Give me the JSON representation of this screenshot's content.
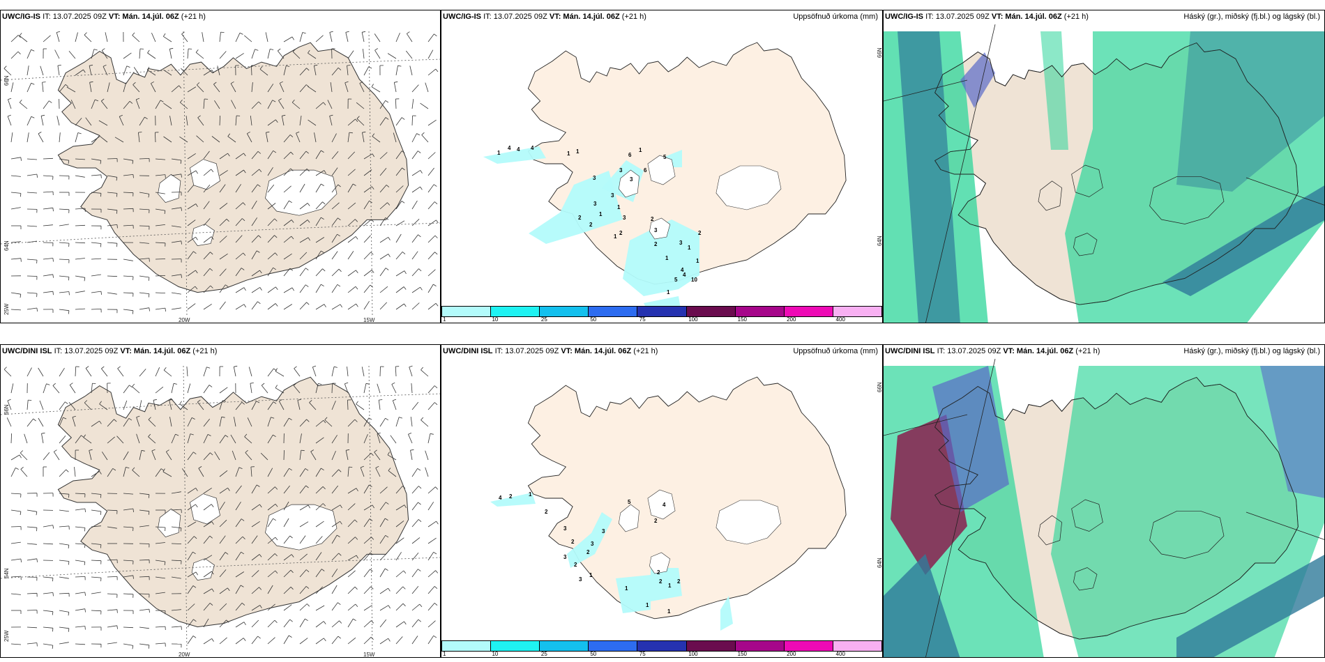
{
  "panels": [
    {
      "id": "ig-wind",
      "model": "UWC/IG-IS",
      "it": "IT: 13.07.2025 09Z",
      "vt": "VT: Mán. 14.júl. 06Z",
      "lead": "(+21 h)",
      "title": "",
      "lat_labels": [
        "66N",
        "64N",
        "25W"
      ],
      "lon_labels": [
        "20W",
        "15W"
      ]
    },
    {
      "id": "ig-precip",
      "model": "UWC/IG-IS",
      "it": "IT: 13.07.2025 09Z",
      "vt": "VT: Mán. 14.júl. 06Z",
      "lead": "(+21 h)",
      "title": "Uppsöfnuð úrkoma (mm)",
      "lat_labels": [
        "66N",
        "64N"
      ],
      "lon_labels": [],
      "precip_values": [
        "1",
        "4",
        "4",
        "4",
        "1",
        "1",
        "3",
        "3",
        "3",
        "6",
        "1",
        "6",
        "3",
        "1",
        "1",
        "3",
        "3",
        "5",
        "2",
        "2",
        "2",
        "2",
        "3",
        "1",
        "2",
        "3",
        "1",
        "2",
        "4",
        "5",
        "4",
        "10",
        "1",
        "1",
        "1",
        "1"
      ]
    },
    {
      "id": "ig-cloud",
      "model": "UWC/IG-IS",
      "it": "IT: 13.07.2025 09Z",
      "vt": "VT: Mán. 14.júl. 06Z",
      "lead": "(+21 h)",
      "title": "Háský (gr.), miðský (fj.bl.) og lágský (bl.)",
      "lat_labels": [],
      "lon_labels": []
    },
    {
      "id": "dini-wind",
      "model": "UWC/DINI ISL",
      "it": "IT: 13.07.2025 09Z",
      "vt": "VT: Mán. 14.júl. 06Z",
      "lead": "(+21 h)",
      "title": "",
      "lat_labels": [
        "66N",
        "64N",
        "25W"
      ],
      "lon_labels": [
        "20W",
        "15W"
      ]
    },
    {
      "id": "dini-precip",
      "model": "UWC/DINI ISL",
      "it": "IT: 13.07.2025 09Z",
      "vt": "VT: Mán. 14.júl. 06Z",
      "lead": "(+21 h)",
      "title": "Uppsöfnuð úrkoma (mm)",
      "lat_labels": [
        "66N",
        "64N"
      ],
      "lon_labels": [],
      "precip_values": [
        "4",
        "2",
        "1",
        "5",
        "4",
        "2",
        "2",
        "3",
        "2",
        "2",
        "3",
        "2",
        "3",
        "1",
        "3",
        "3",
        "2",
        "2",
        "1",
        "2",
        "1",
        "1",
        "1"
      ]
    },
    {
      "id": "dini-cloud",
      "model": "UWC/DINI ISL",
      "it": "IT: 13.07.2025 09Z",
      "vt": "VT: Mán. 14.júl. 06Z",
      "lead": "(+21 h)",
      "title": "Háský (gr.), miðský (fj.bl.) og lágský (bl.)",
      "lat_labels": [],
      "lon_labels": []
    }
  ],
  "legend": {
    "colors": [
      "#b3fbfb",
      "#1ff2f2",
      "#14c0ee",
      "#2d6cf0",
      "#2532b0",
      "#6a0c4e",
      "#a6068a",
      "#ee0ab5",
      "#f8b0f2"
    ],
    "labels": [
      "1",
      "10",
      "25",
      "50",
      "75",
      "100",
      "150",
      "200",
      "400"
    ]
  },
  "colors": {
    "land": "#efe3d5",
    "land_precip": "#fdf0e3",
    "precip_light": "#b3fbfb",
    "cloud_high": "#2ed59a",
    "cloud_mid": "#2f7a9a",
    "cloud_low": "#5a6ac8"
  }
}
